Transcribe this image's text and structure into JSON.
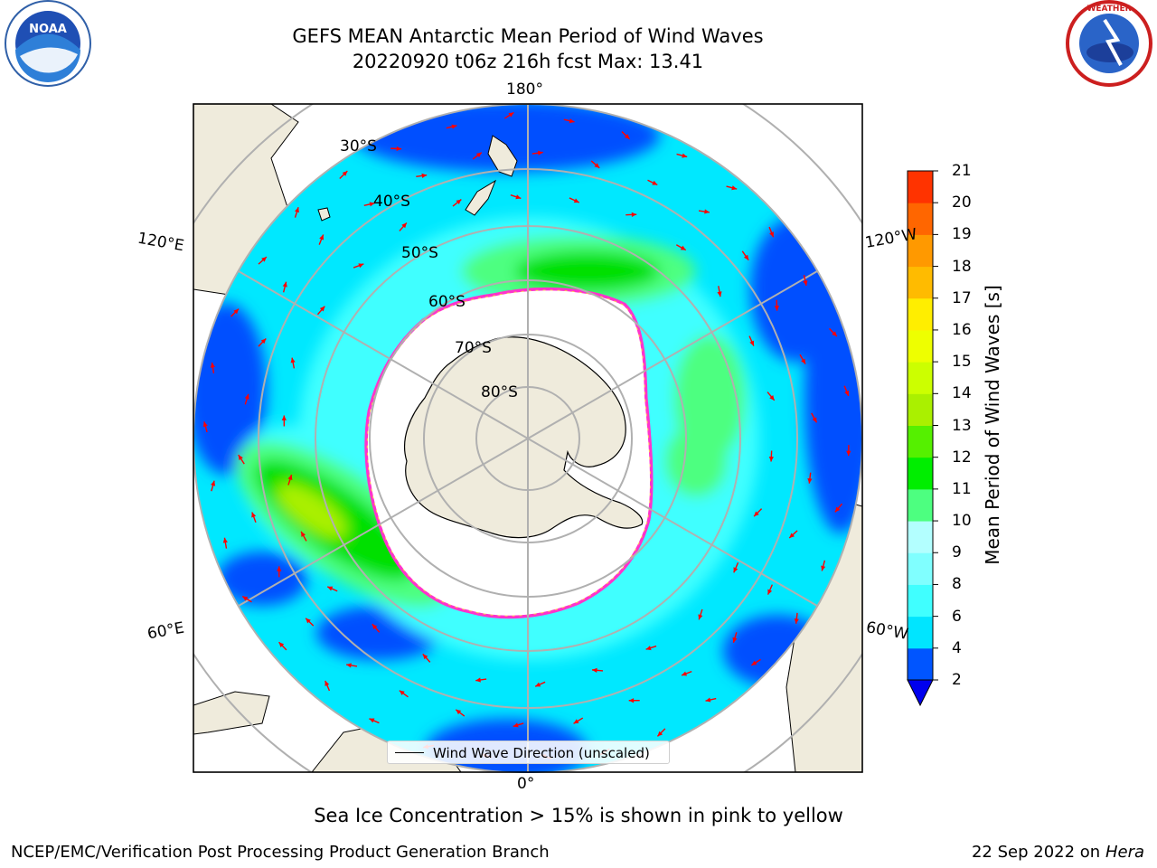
{
  "title": {
    "line1": "GEFS MEAN Antarctic Mean Period of Wind Waves",
    "line2": "20220920 t06z 216h fcst   Max: 13.41"
  },
  "logos": {
    "left": "NOAA",
    "right": "NATIONAL WEATHER SERVICE"
  },
  "map": {
    "projection": "south-polar-stereographic",
    "longitude_labels": {
      "top": "180°",
      "bottom": "0°",
      "left_upper": "120°E",
      "left_lower": "60°E",
      "right_upper": "120°W",
      "right_lower": "60°W"
    },
    "latitude_labels": [
      "30°S",
      "40°S",
      "50°S",
      "60°S",
      "70°S",
      "80°S"
    ],
    "colors": {
      "land": "#efebdc",
      "ice_free_zone": "#ffffff",
      "sea_ice_edge": "#ff33cc",
      "arrows": "#ff0000",
      "gridlines": "#b0b0b0"
    }
  },
  "legend": {
    "text": "Wind Wave Direction (unscaled)"
  },
  "colorbar": {
    "label": "Mean Period of Wind Waves [s]",
    "ticks": [
      "2",
      "4",
      "6",
      "8",
      "9",
      "10",
      "11",
      "12",
      "13",
      "14",
      "15",
      "16",
      "17",
      "18",
      "19",
      "20",
      "21"
    ],
    "colors": [
      "#0055ff",
      "#00e5ff",
      "#40ffff",
      "#80ffff",
      "#b3ffff",
      "#4dff80",
      "#00ee00",
      "#55f000",
      "#aaf000",
      "#ccff00",
      "#eeff00",
      "#ffee00",
      "#ffbb00",
      "#ff9900",
      "#ff6600",
      "#ff3300",
      "#ff0000"
    ],
    "under_color": "#0000ee"
  },
  "caption": "Sea Ice Concentration > 15% is shown in pink to yellow",
  "footer": {
    "credit": "NCEP/EMC/Verification Post Processing Product Generation Branch",
    "date": "22 Sep 2022 on",
    "host": "Hera"
  }
}
